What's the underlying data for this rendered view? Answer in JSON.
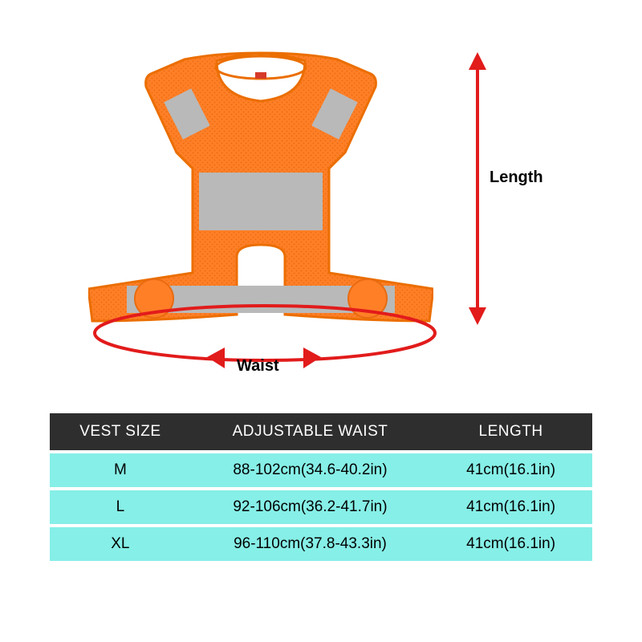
{
  "diagram": {
    "length_label": "Length",
    "waist_label": "Waist",
    "arrow_color": "#e21b1b",
    "ellipse_stroke": "#e21b1b",
    "vest": {
      "body_fill": "#ff7f27",
      "body_stroke": "#e56a00",
      "reflective_fill": "#b9b9b9",
      "mesh_dot": "#e07020"
    },
    "length_arrow_height": 330
  },
  "table": {
    "header_bg": "#2e2e2e",
    "header_fg": "#ffffff",
    "row_bg": "#86efe7",
    "row_fg": "#000000",
    "row_border": "#ffffff",
    "columns": [
      "VEST SIZE",
      "ADJUSTABLE WAIST",
      "LENGTH"
    ],
    "rows": [
      [
        "M",
        "88-102cm(34.6-40.2in)",
        "41cm(16.1in)"
      ],
      [
        "L",
        "92-106cm(36.2-41.7in)",
        "41cm(16.1in)"
      ],
      [
        "XL",
        "96-110cm(37.8-43.3in)",
        "41cm(16.1in)"
      ]
    ]
  }
}
